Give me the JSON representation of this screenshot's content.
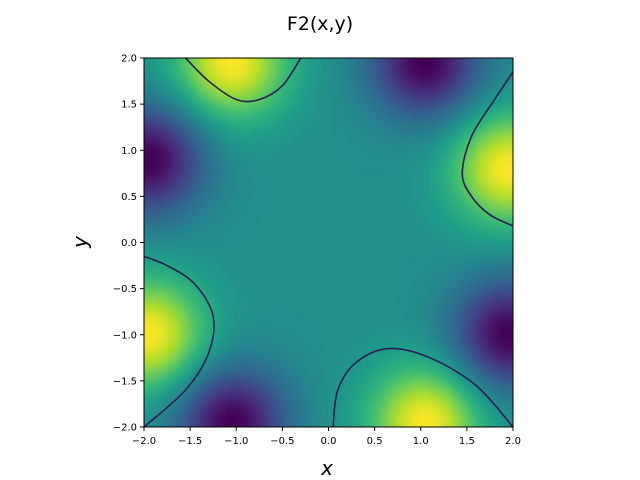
{
  "chart_data": {
    "type": "heatmap",
    "title": "F2(x,y)",
    "xlabel": "x",
    "ylabel": "y",
    "xlim": [
      -2.0,
      2.0
    ],
    "ylim": [
      -2.0,
      2.0
    ],
    "xticks": [
      "−2.0",
      "−1.5",
      "−1.0",
      "−0.5",
      "0.0",
      "0.5",
      "1.0",
      "1.5",
      "2.0"
    ],
    "yticks": [
      "2.0",
      "1.5",
      "1.0",
      "0.5",
      "0.0",
      "−0.5",
      "−1.0",
      "−1.5",
      "−2.0"
    ],
    "colormap": "viridis",
    "grid": false,
    "contour_color": "#2a1f4f",
    "extrema": [
      {
        "kind": "max",
        "x": 1.05,
        "y": -1.95
      },
      {
        "kind": "max",
        "x": -1.05,
        "y": 1.95
      },
      {
        "kind": "max",
        "x": 1.95,
        "y": 0.8
      },
      {
        "kind": "max",
        "x": -1.95,
        "y": -1.0
      },
      {
        "kind": "min",
        "x": 1.05,
        "y": 1.95
      },
      {
        "kind": "min",
        "x": -1.05,
        "y": -1.95
      },
      {
        "kind": "min",
        "x": -1.95,
        "y": 0.9
      },
      {
        "kind": "min",
        "x": 1.95,
        "y": -1.0
      }
    ],
    "contours": [
      {
        "name": "top-left",
        "points": [
          [
            -1.55,
            2.0
          ],
          [
            -1.3,
            1.75
          ],
          [
            -1.0,
            1.55
          ],
          [
            -0.75,
            1.55
          ],
          [
            -0.5,
            1.7
          ],
          [
            -0.3,
            2.0
          ]
        ]
      },
      {
        "name": "right",
        "points": [
          [
            2.0,
            1.85
          ],
          [
            1.8,
            1.55
          ],
          [
            1.55,
            1.15
          ],
          [
            1.45,
            0.75
          ],
          [
            1.55,
            0.5
          ],
          [
            1.75,
            0.3
          ],
          [
            2.0,
            0.18
          ]
        ]
      },
      {
        "name": "left",
        "points": [
          [
            -2.0,
            -0.15
          ],
          [
            -1.75,
            -0.25
          ],
          [
            -1.45,
            -0.45
          ],
          [
            -1.25,
            -0.8
          ],
          [
            -1.3,
            -1.2
          ],
          [
            -1.55,
            -1.6
          ],
          [
            -2.0,
            -2.0
          ]
        ]
      },
      {
        "name": "bottom",
        "points": [
          [
            0.05,
            -2.0
          ],
          [
            0.1,
            -1.6
          ],
          [
            0.3,
            -1.3
          ],
          [
            0.65,
            -1.15
          ],
          [
            1.1,
            -1.25
          ],
          [
            1.6,
            -1.55
          ],
          [
            2.0,
            -2.0
          ]
        ]
      }
    ]
  }
}
